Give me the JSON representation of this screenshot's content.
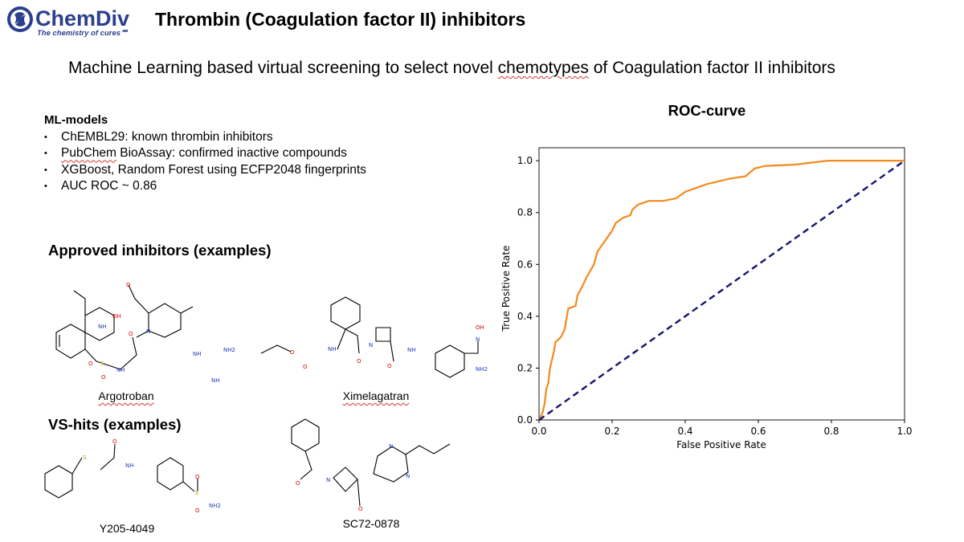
{
  "logo": {
    "brand": "ChemDiv",
    "tagline": "The chemistry of cures",
    "color": "#2b3f8f"
  },
  "header": {
    "title": "Thrombin (Coagulation factor II) inhibitors"
  },
  "subtitle": {
    "before": "Machine Learning based virtual screening to select novel ",
    "flagged": "chemotypes",
    "after": " of Coagulation factor II inhibitors"
  },
  "ml_models": {
    "heading": "ML-models",
    "items": [
      {
        "flagged": "",
        "text": "ChEMBL29: known thrombin inhibitors"
      },
      {
        "flagged": "PubChem",
        "text": " BioAssay: confirmed inactive compounds"
      },
      {
        "flagged": "",
        "text": "XGBoost, Random Forest using ECFP2048 fingerprints"
      },
      {
        "flagged": "",
        "text": "AUC ROC ~ 0.86"
      }
    ]
  },
  "approved": {
    "heading": "Approved inhibitors (examples)",
    "compounds": [
      {
        "name": "Argotroban",
        "atoms": [
          "NH",
          "OH",
          "O",
          "O",
          "N",
          "S",
          "O",
          "O",
          "NH",
          "NH",
          "NH2",
          "NH"
        ]
      },
      {
        "name": "Ximelagatran",
        "atoms": [
          "O",
          "O",
          "NH",
          "O",
          "N",
          "O",
          "NH",
          "OH",
          "N",
          "NH2"
        ]
      }
    ]
  },
  "vs_hits": {
    "heading": "VS-hits (examples)",
    "compounds": [
      {
        "name": "Y205-4049",
        "atoms": [
          "S",
          "O",
          "NH",
          "S",
          "O",
          "O",
          "NH2"
        ]
      },
      {
        "name": "SC72-0878",
        "atoms": [
          "O",
          "N",
          "O",
          "N",
          "N"
        ]
      }
    ]
  },
  "chart_data": {
    "type": "line",
    "title": "ROC-curve",
    "xlabel": "False Positive Rate",
    "ylabel": "True Positive Rate",
    "xlim": [
      0,
      1.0
    ],
    "ylim": [
      0,
      1.05
    ],
    "xticks": [
      "0.0",
      "0.2",
      "0.4",
      "0.6",
      "0.8",
      "1.0"
    ],
    "yticks": [
      "0.0",
      "0.2",
      "0.4",
      "0.6",
      "0.8",
      "1.0"
    ],
    "grid": false,
    "series": [
      {
        "style": "solid",
        "color": "#f28a1e",
        "x": [
          0,
          0.01,
          0.015,
          0.02,
          0.025,
          0.03,
          0.04,
          0.045,
          0.06,
          0.07,
          0.08,
          0.1,
          0.105,
          0.12,
          0.13,
          0.15,
          0.16,
          0.18,
          0.2,
          0.21,
          0.23,
          0.25,
          0.255,
          0.27,
          0.3,
          0.34,
          0.375,
          0.4,
          0.46,
          0.52,
          0.565,
          0.59,
          0.62,
          0.7,
          0.79,
          1.0
        ],
        "y": [
          0,
          0.03,
          0.06,
          0.12,
          0.14,
          0.2,
          0.26,
          0.3,
          0.32,
          0.35,
          0.43,
          0.44,
          0.48,
          0.52,
          0.55,
          0.6,
          0.65,
          0.69,
          0.73,
          0.76,
          0.78,
          0.79,
          0.81,
          0.83,
          0.845,
          0.845,
          0.855,
          0.88,
          0.91,
          0.93,
          0.94,
          0.97,
          0.98,
          0.985,
          1.0,
          1.0
        ]
      },
      {
        "style": "dashed",
        "color": "#14146e",
        "x": [
          0,
          1
        ],
        "y": [
          0,
          1
        ]
      }
    ]
  }
}
